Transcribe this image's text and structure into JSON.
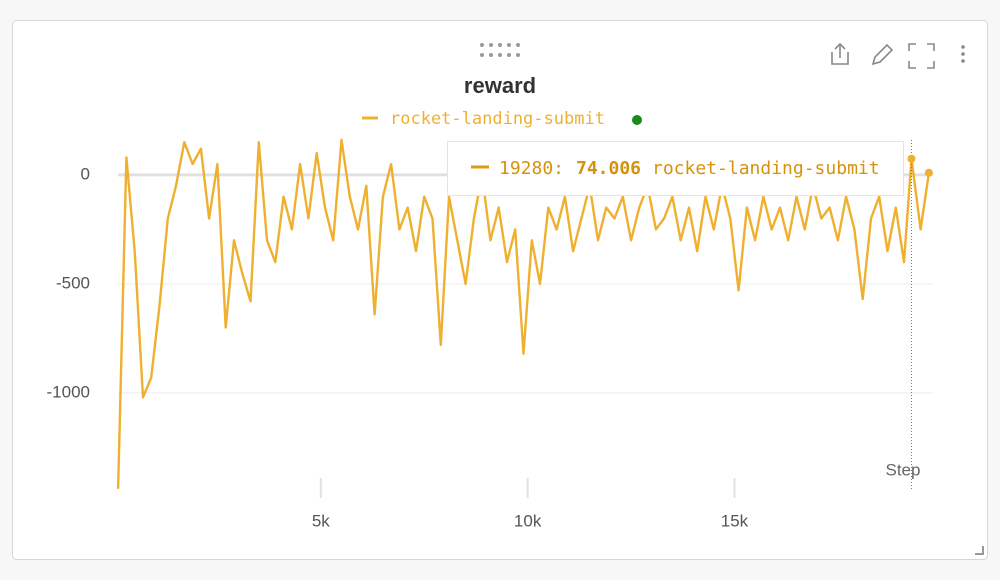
{
  "chart_data": {
    "type": "line",
    "title": "reward",
    "x_label": "Step",
    "x": [
      100,
      300,
      500,
      700,
      900,
      1100,
      1300,
      1500,
      1700,
      1900,
      2100,
      2300,
      2500,
      2700,
      2900,
      3100,
      3300,
      3500,
      3700,
      3900,
      4100,
      4300,
      4500,
      4700,
      4900,
      5100,
      5300,
      5500,
      5700,
      5900,
      6100,
      6300,
      6500,
      6700,
      6900,
      7100,
      7300,
      7500,
      7700,
      7900,
      8100,
      8300,
      8500,
      8700,
      8900,
      9100,
      9300,
      9500,
      9700,
      9900,
      10100,
      10300,
      10500,
      10700,
      10900,
      11100,
      11300,
      11500,
      11700,
      11900,
      12100,
      12300,
      12500,
      12700,
      12900,
      13100,
      13300,
      13500,
      13700,
      13900,
      14100,
      14300,
      14500,
      14700,
      14900,
      15100,
      15300,
      15500,
      15700,
      15900,
      16100,
      16300,
      16500,
      16700,
      16900,
      17100,
      17300,
      17500,
      17700,
      17900,
      18100,
      18300,
      18500,
      18700,
      18900,
      19100,
      19280,
      19500,
      19700
    ],
    "series": [
      {
        "name": "rocket-landing-submit",
        "color": "#efb030",
        "values": [
          -1440,
          80,
          -350,
          -1020,
          -930,
          -600,
          -200,
          -50,
          150,
          50,
          120,
          -200,
          50,
          -700,
          -300,
          -450,
          -580,
          150,
          -300,
          -400,
          -100,
          -250,
          50,
          -200,
          100,
          -150,
          -300,
          160,
          -100,
          -250,
          -50,
          -640,
          -100,
          50,
          -250,
          -150,
          -350,
          -100,
          -200,
          -780,
          -100,
          -300,
          -500,
          -200,
          0,
          -300,
          -150,
          -400,
          -250,
          -820,
          -300,
          -500,
          -150,
          -250,
          -100,
          -350,
          -200,
          -50,
          -300,
          -150,
          -200,
          -100,
          -300,
          -150,
          -50,
          -250,
          -200,
          -100,
          -300,
          -150,
          -350,
          -100,
          -250,
          -50,
          -200,
          -530,
          -150,
          -300,
          -100,
          -250,
          -150,
          -300,
          -100,
          -250,
          -50,
          -200,
          -150,
          -300,
          -100,
          -250,
          -570,
          -200,
          -100,
          -350,
          -150,
          -400,
          74.006,
          -250,
          10
        ]
      }
    ],
    "xlim": [
      0,
      19800
    ],
    "ylim": [
      -1450,
      160
    ],
    "xticks": [
      {
        "value": 5000,
        "label": "5k"
      },
      {
        "value": 10000,
        "label": "10k"
      },
      {
        "value": 15000,
        "label": "15k"
      }
    ],
    "yticks": [
      0,
      -500,
      -1000
    ],
    "grid": true,
    "tooltip": {
      "x": 19280,
      "x_label": "19280:",
      "value": 74.006
    }
  }
}
